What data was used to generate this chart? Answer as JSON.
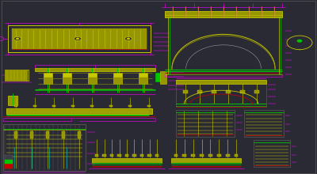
{
  "bg_color": "#2a2a35",
  "Y": "#c8c800",
  "Y2": "#969600",
  "M": "#ff00ff",
  "G": "#00c800",
  "R": "#c80000",
  "CY": "#00c8c8",
  "W": "#c8c8c8",
  "GR": "#646464",
  "DRK": "#3c3c46",
  "fig_width": 4.0,
  "fig_height": 2.2,
  "dpi": 100
}
